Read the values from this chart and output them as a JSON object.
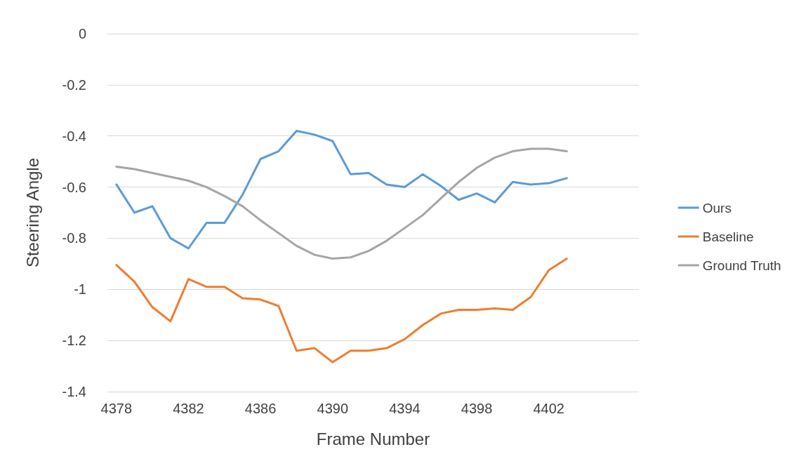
{
  "chart_data": {
    "type": "line",
    "xlabel": "Frame Number",
    "ylabel": "Steering Angle",
    "x": [
      4378,
      4379,
      4380,
      4381,
      4382,
      4383,
      4384,
      4385,
      4386,
      4387,
      4388,
      4389,
      4390,
      4391,
      4392,
      4393,
      4394,
      4395,
      4396,
      4397,
      4398,
      4399,
      4400,
      4401,
      4402,
      4403
    ],
    "series": [
      {
        "name": "Ours",
        "color": "#5b9bd5",
        "values": [
          -0.59,
          -0.7,
          -0.675,
          -0.8,
          -0.84,
          -0.74,
          -0.74,
          -0.63,
          -0.49,
          -0.46,
          -0.38,
          -0.395,
          -0.42,
          -0.55,
          -0.545,
          -0.59,
          -0.6,
          -0.55,
          -0.595,
          -0.65,
          -0.625,
          -0.66,
          -0.58,
          -0.59,
          -0.585,
          -0.565
        ]
      },
      {
        "name": "Baseline",
        "color": "#ed7d31",
        "values": [
          -0.905,
          -0.97,
          -1.07,
          -1.125,
          -0.96,
          -0.99,
          -0.99,
          -1.035,
          -1.04,
          -1.065,
          -1.24,
          -1.23,
          -1.285,
          -1.24,
          -1.24,
          -1.23,
          -1.195,
          -1.14,
          -1.095,
          -1.08,
          -1.08,
          -1.075,
          -1.08,
          -1.03,
          -0.925,
          -0.88
        ]
      },
      {
        "name": "Ground Truth",
        "color": "#a5a5a5",
        "values": [
          -0.52,
          -0.53,
          -0.545,
          -0.56,
          -0.575,
          -0.6,
          -0.635,
          -0.675,
          -0.73,
          -0.78,
          -0.83,
          -0.865,
          -0.88,
          -0.875,
          -0.85,
          -0.81,
          -0.76,
          -0.71,
          -0.645,
          -0.58,
          -0.525,
          -0.485,
          -0.46,
          -0.45,
          -0.45,
          -0.46
        ]
      }
    ],
    "xlim": [
      4377.5,
      4407
    ],
    "xticks": [
      4378,
      4382,
      4386,
      4390,
      4394,
      4398,
      4402
    ],
    "ylim": [
      -1.4,
      0
    ],
    "yticks": [
      0,
      -0.2,
      -0.4,
      -0.6,
      -0.8,
      -1,
      -1.2,
      -1.4
    ],
    "grid": "y",
    "legend": "right",
    "marker": "none",
    "line_style": "solid"
  }
}
